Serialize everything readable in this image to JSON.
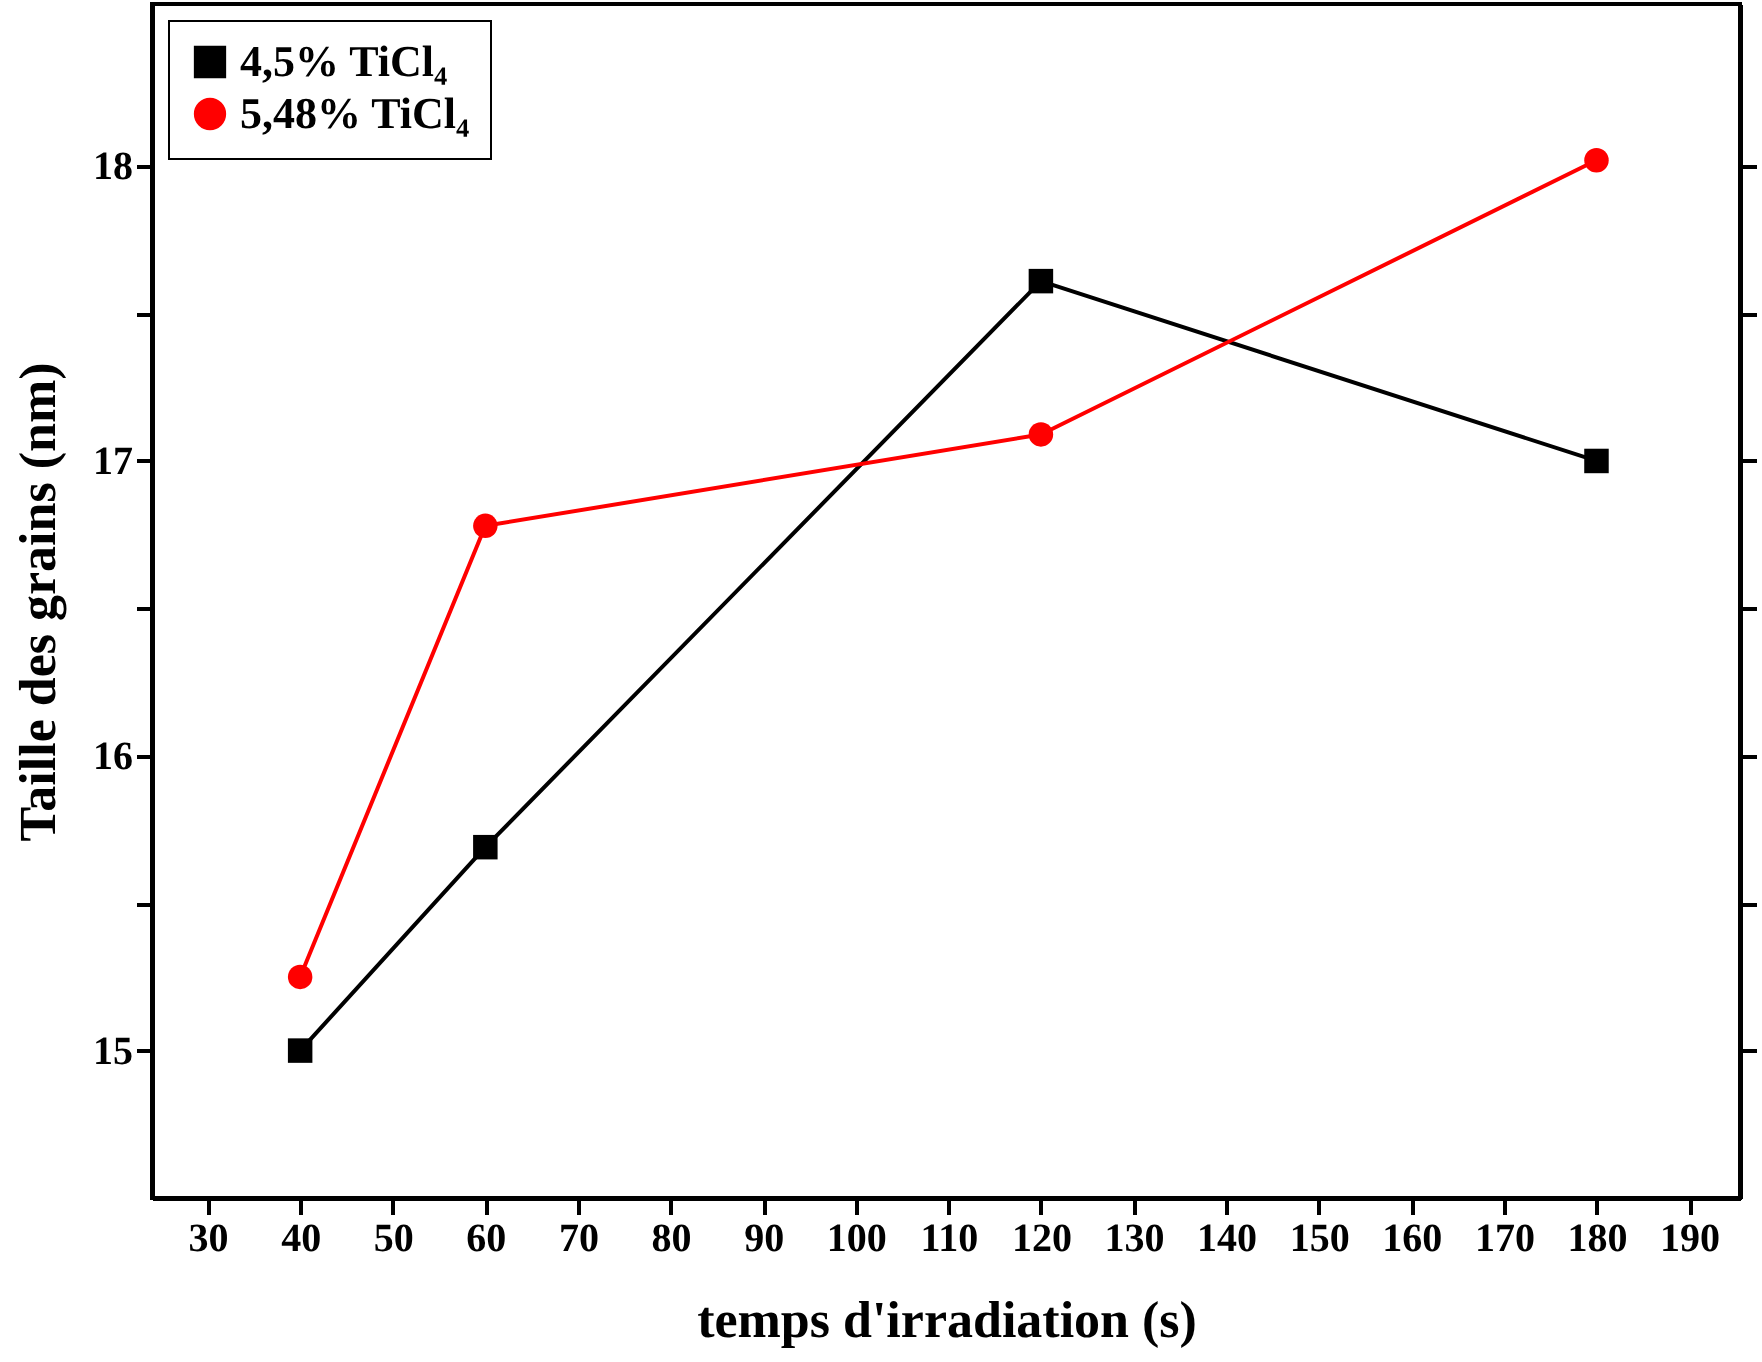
{
  "chart_data": {
    "type": "line",
    "xlabel": "temps d'irradiation (s)",
    "ylabel": "Taille des grains (nm)",
    "x": [
      40,
      60,
      120,
      180
    ],
    "series": [
      {
        "name": "4,5% TiCl₄",
        "color": "#000000",
        "marker": "square",
        "values": [
          15.0,
          15.69,
          17.61,
          17.0
        ]
      },
      {
        "name": "5,48% TiCl₄",
        "color": "#ff0000",
        "marker": "circle",
        "values": [
          15.25,
          16.78,
          17.09,
          18.02
        ]
      }
    ],
    "xlim": [
      24,
      195.5
    ],
    "xticks": [
      30,
      40,
      50,
      60,
      70,
      80,
      90,
      100,
      110,
      120,
      130,
      140,
      150,
      160,
      170,
      180,
      190
    ],
    "ylim": [
      14.5,
      18.55
    ],
    "yticks": [
      15,
      {
        "value": 15.5,
        "label": null
      },
      16,
      {
        "value": 16.5,
        "label": null
      },
      17,
      {
        "value": 17.5,
        "label": null
      },
      18
    ],
    "grid": false,
    "legend": "top left"
  }
}
